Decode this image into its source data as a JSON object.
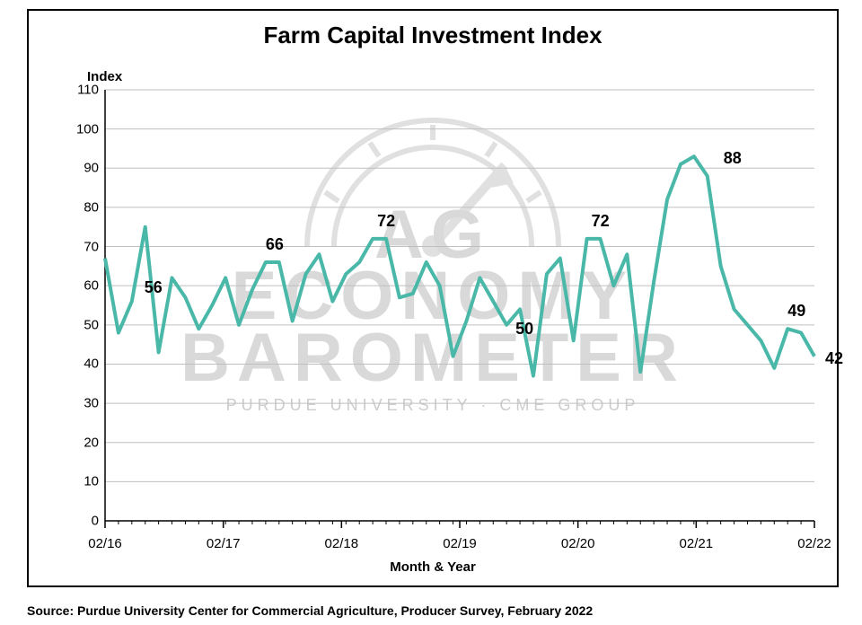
{
  "chart": {
    "title": "Farm Capital Investment Index",
    "y_axis_title": "Index",
    "x_axis_title": "Month & Year",
    "source": "Source: Purdue University Center for Commercial Agriculture, Producer Survey, February 2022",
    "type": "line",
    "line_color": "#4ab8a8",
    "line_width": 4,
    "grid_color": "#bfbfbf",
    "background_color": "#ffffff",
    "border_color": "#000000",
    "ylim": [
      0,
      110
    ],
    "ytick_step": 10,
    "x_labels": [
      "02/16",
      "02/17",
      "02/18",
      "02/19",
      "02/20",
      "02/21",
      "02/22"
    ],
    "series": [
      67,
      48,
      56,
      75,
      43,
      62,
      57,
      49,
      55,
      62,
      50,
      59,
      66,
      66,
      51,
      63,
      68,
      56,
      63,
      66,
      72,
      72,
      57,
      58,
      66,
      60,
      42,
      51,
      62,
      56,
      50,
      54,
      37,
      63,
      67,
      46,
      72,
      72,
      60,
      68,
      38,
      61,
      82,
      91,
      93,
      88,
      65,
      54,
      50,
      46,
      39,
      49,
      48,
      42
    ],
    "annotations": [
      {
        "text": "56",
        "x_index": 2,
        "y_offset": 8,
        "x_offset": 14
      },
      {
        "text": "66",
        "x_index": 12,
        "y_offset": 12,
        "x_offset": 0
      },
      {
        "text": "72",
        "x_index": 20,
        "y_offset": 12,
        "x_offset": 5
      },
      {
        "text": "50",
        "x_index": 30,
        "y_offset": -12,
        "x_offset": 10
      },
      {
        "text": "72",
        "x_index": 36,
        "y_offset": 12,
        "x_offset": 5
      },
      {
        "text": "88",
        "x_index": 45,
        "y_offset": 12,
        "x_offset": 18
      },
      {
        "text": "49",
        "x_index": 51,
        "y_offset": 12,
        "x_offset": 0
      },
      {
        "text": "42",
        "x_index": 53,
        "y_offset": -10,
        "x_offset": 12
      }
    ],
    "watermark_main1": "AG ECONOMY",
    "watermark_main2": "BAROMETER",
    "watermark_sub": "PURDUE UNIVERSITY · CME GROUP"
  }
}
